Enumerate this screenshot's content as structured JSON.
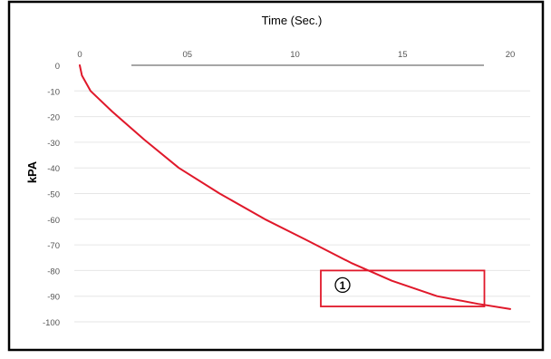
{
  "chart_data": {
    "type": "line",
    "title": "Time (Sec.)",
    "xlabel": "",
    "ylabel": "kPA",
    "x_tick_labels": [
      "0",
      "05",
      "10",
      "15",
      "20"
    ],
    "x_ticks": [
      0,
      5,
      10,
      15,
      20
    ],
    "y_ticks": [
      0,
      -10,
      -20,
      -30,
      -40,
      -50,
      -60,
      -70,
      -80,
      -90,
      -100
    ],
    "xlim": [
      0,
      20.5
    ],
    "ylim": [
      -107,
      0
    ],
    "grid": true,
    "series": [
      {
        "color": "#e0182a",
        "x": [
          0,
          0.1,
          0.5,
          1.5,
          3,
          4.6,
          6.5,
          8.6,
          10.5,
          12.6,
          14.5,
          16.6,
          18.5,
          20
        ],
        "y": [
          0,
          -4,
          -10,
          -18,
          -29,
          -40,
          -50,
          -60,
          -68,
          -77,
          -84,
          -90,
          -93,
          -95
        ]
      }
    ],
    "annotations": [
      {
        "label": "1",
        "shape": "rectangle",
        "x_range": [
          11.2,
          18.8
        ],
        "y_range": [
          -94,
          -80
        ],
        "color": "#e0182a"
      }
    ]
  }
}
